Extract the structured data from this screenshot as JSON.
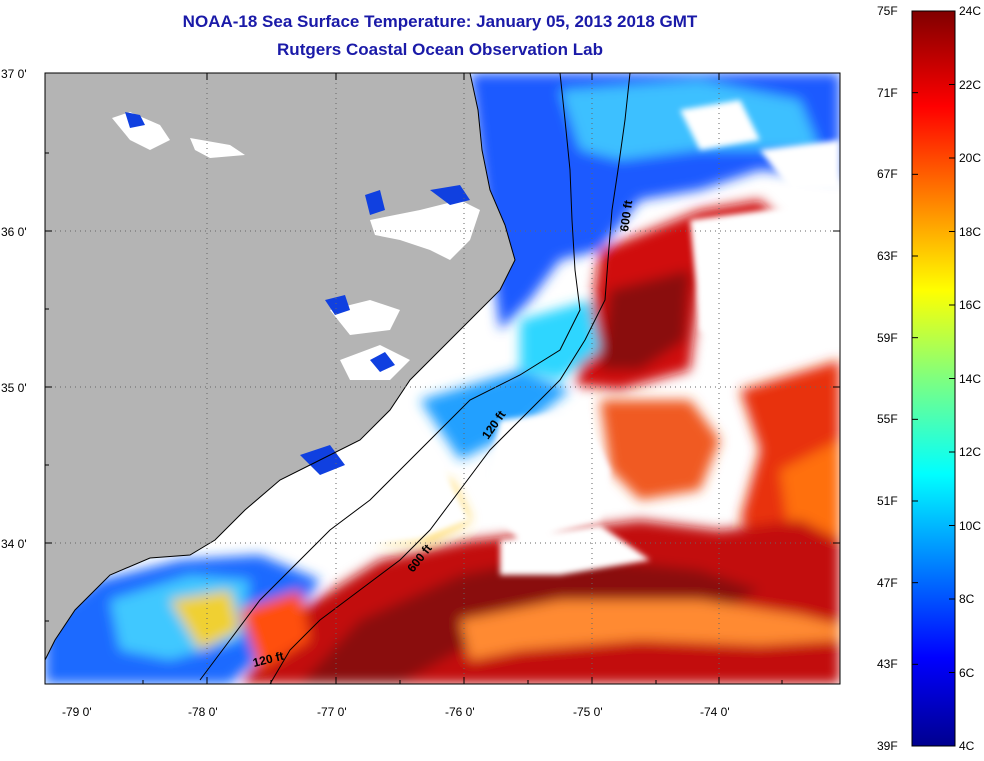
{
  "title_line1": "NOAA-18 Sea Surface Temperature:  January 05, 2013 2018 GMT",
  "title_line2": "Rutgers Coastal Ocean Observation Lab",
  "lat_labels": [
    "37 0'",
    "36 0'",
    "35 0'",
    "34 0'"
  ],
  "lon_labels": [
    "-79 0'",
    "-78 0'",
    "-77 0'",
    "-76 0'",
    "-75 0'",
    "-74 0'"
  ],
  "contour_labels": [
    "600 ft",
    "120 ft",
    "600 ft",
    "120 ft"
  ],
  "colorbar": {
    "fahrenheit": [
      "75F",
      "71F",
      "67F",
      "63F",
      "59F",
      "55F",
      "51F",
      "47F",
      "43F",
      "39F"
    ],
    "celsius": [
      "24C",
      "22C",
      "20C",
      "18C",
      "16C",
      "14C",
      "12C",
      "10C",
      "8C",
      "6C",
      "4C"
    ]
  },
  "colors": {
    "title": "#1a1aa8",
    "land": "#b4b4b4",
    "cloud": "#ffffff"
  }
}
